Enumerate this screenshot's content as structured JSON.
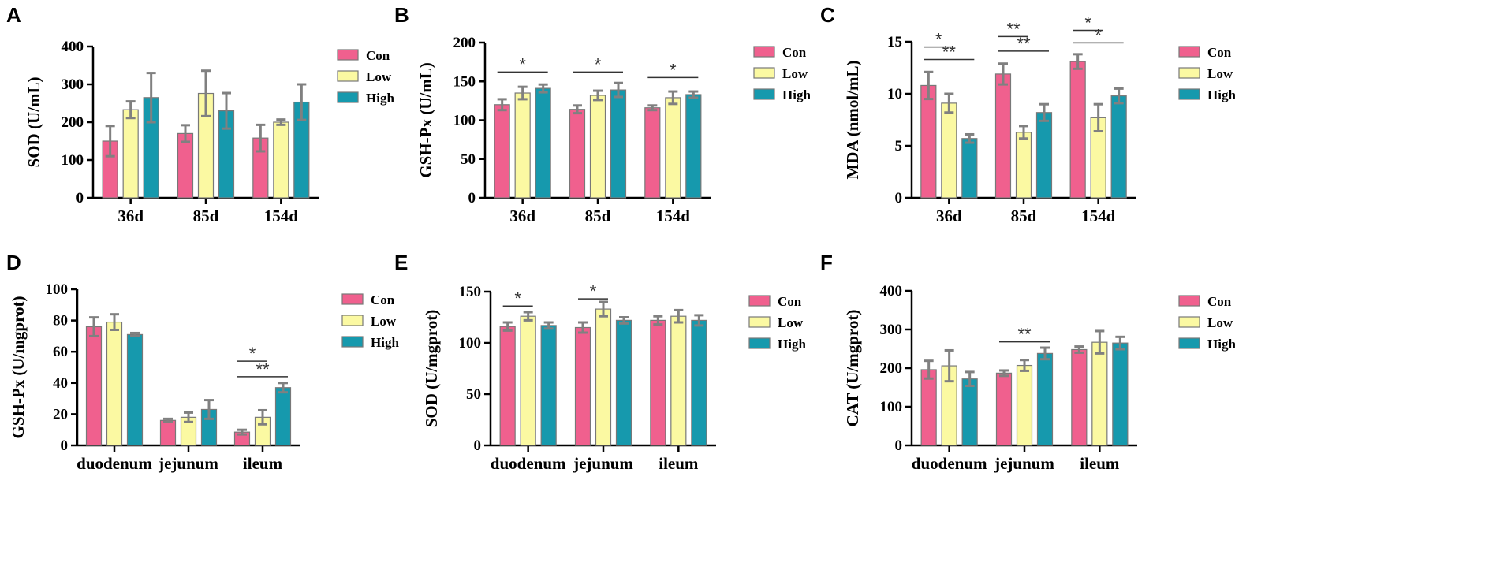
{
  "colors": {
    "Con": "#f0608e",
    "Low": "#fbf9a2",
    "High": "#1699ad",
    "bar_edge": "#787878",
    "err": "#808080"
  },
  "chart_data": [
    {
      "letter": "A",
      "type": "bar",
      "ylabel": "SOD (U/mL)",
      "ylim": [
        0,
        400
      ],
      "yticks": [
        0,
        100,
        200,
        300,
        400
      ],
      "categories": [
        "36d",
        "85d",
        "154d"
      ],
      "series": [
        {
          "name": "Con",
          "values": [
            150,
            170,
            158
          ],
          "errors": [
            40,
            22,
            35
          ]
        },
        {
          "name": "Low",
          "values": [
            233,
            276,
            200
          ],
          "errors": [
            22,
            60,
            7
          ]
        },
        {
          "name": "High",
          "values": [
            265,
            230,
            253
          ],
          "errors": [
            65,
            47,
            47
          ]
        }
      ],
      "significance": []
    },
    {
      "letter": "B",
      "type": "bar",
      "ylabel": "GSH-Px (U/mL)",
      "ylim": [
        0,
        200
      ],
      "yticks": [
        0,
        50,
        100,
        150,
        200
      ],
      "categories": [
        "36d",
        "85d",
        "154d"
      ],
      "series": [
        {
          "name": "Con",
          "values": [
            120,
            114,
            116
          ],
          "errors": [
            7,
            5,
            3
          ]
        },
        {
          "name": "Low",
          "values": [
            135,
            132,
            129
          ],
          "errors": [
            8,
            6,
            8
          ]
        },
        {
          "name": "High",
          "values": [
            141,
            139,
            133
          ],
          "errors": [
            5,
            9,
            4
          ]
        }
      ],
      "significance": [
        {
          "cat": 0,
          "from": 0,
          "to": 2,
          "label": "*",
          "y": 162
        },
        {
          "cat": 1,
          "from": 0,
          "to": 2,
          "label": "*",
          "y": 162
        },
        {
          "cat": 2,
          "from": 0,
          "to": 2,
          "label": "*",
          "y": 155
        }
      ]
    },
    {
      "letter": "C",
      "type": "bar",
      "ylabel": "MDA (nmol/mL)",
      "ylim": [
        0,
        15
      ],
      "yticks": [
        0,
        5,
        10,
        15
      ],
      "categories": [
        "36d",
        "85d",
        "154d"
      ],
      "series": [
        {
          "name": "Con",
          "values": [
            10.8,
            11.9,
            13.1
          ],
          "errors": [
            1.3,
            1.0,
            0.7
          ]
        },
        {
          "name": "Low",
          "values": [
            9.1,
            6.3,
            7.7
          ],
          "errors": [
            0.9,
            0.6,
            1.3
          ]
        },
        {
          "name": "High",
          "values": [
            5.7,
            8.2,
            9.8
          ],
          "errors": [
            0.4,
            0.8,
            0.7
          ]
        }
      ],
      "significance": [
        {
          "cat": 0,
          "from": 0,
          "to": 1,
          "label": "*",
          "y": 14.5
        },
        {
          "cat": 0,
          "from": 0,
          "to": 2,
          "label": "**",
          "y": 13.3
        },
        {
          "cat": 1,
          "from": 0,
          "to": 1,
          "label": "**",
          "y": 15.5
        },
        {
          "cat": 1,
          "from": 0,
          "to": 2,
          "label": "**",
          "y": 14.1
        },
        {
          "cat": 2,
          "from": 0,
          "to": 1,
          "label": "*",
          "y": 16.1
        },
        {
          "cat": 2,
          "from": 0,
          "to": 2,
          "label": "*",
          "y": 14.9
        }
      ]
    },
    {
      "letter": "D",
      "type": "bar",
      "ylabel": "GSH-Px (U/mgprot)",
      "ylim": [
        0,
        100
      ],
      "yticks": [
        0,
        20,
        40,
        60,
        80,
        100
      ],
      "categories": [
        "duodenum",
        "jejunum",
        "ileum"
      ],
      "series": [
        {
          "name": "Con",
          "values": [
            76,
            16,
            8.5
          ],
          "errors": [
            6,
            1,
            1.5
          ]
        },
        {
          "name": "Low",
          "values": [
            79,
            18,
            18
          ],
          "errors": [
            5,
            3,
            4.5
          ]
        },
        {
          "name": "High",
          "values": [
            71,
            23,
            37
          ],
          "errors": [
            1,
            6,
            3
          ]
        }
      ],
      "significance": [
        {
          "cat": 2,
          "from": 0,
          "to": 1,
          "label": "*",
          "y": 54
        },
        {
          "cat": 2,
          "from": 0,
          "to": 2,
          "label": "**",
          "y": 44
        }
      ]
    },
    {
      "letter": "E",
      "type": "bar",
      "ylabel": "SOD (U/mgprot)",
      "ylim": [
        0,
        150
      ],
      "yticks": [
        0,
        50,
        100,
        150
      ],
      "categories": [
        "duodenum",
        "jejunum",
        "ileum"
      ],
      "series": [
        {
          "name": "Con",
          "values": [
            116,
            115,
            122
          ],
          "errors": [
            4,
            5,
            4
          ]
        },
        {
          "name": "Low",
          "values": [
            126,
            133,
            126
          ],
          "errors": [
            4,
            7,
            6
          ]
        },
        {
          "name": "High",
          "values": [
            117,
            122,
            122
          ],
          "errors": [
            3,
            3,
            5
          ]
        }
      ],
      "significance": [
        {
          "cat": 0,
          "from": 0,
          "to": 1,
          "label": "*",
          "y": 136
        },
        {
          "cat": 1,
          "from": 0,
          "to": 1,
          "label": "*",
          "y": 143
        }
      ]
    },
    {
      "letter": "F",
      "type": "bar",
      "ylabel": "CAT (U/mgprot)",
      "ylim": [
        0,
        400
      ],
      "yticks": [
        0,
        100,
        200,
        300,
        400
      ],
      "categories": [
        "duodenum",
        "jejunum",
        "ileum"
      ],
      "series": [
        {
          "name": "Con",
          "values": [
            196,
            187,
            248
          ],
          "errors": [
            23,
            7,
            8
          ]
        },
        {
          "name": "Low",
          "values": [
            206,
            207,
            267
          ],
          "errors": [
            40,
            14,
            29
          ]
        },
        {
          "name": "High",
          "values": [
            172,
            238,
            265
          ],
          "errors": [
            18,
            15,
            16
          ]
        }
      ],
      "significance": [
        {
          "cat": 1,
          "from": 0,
          "to": 2,
          "label": "**",
          "y": 268
        }
      ]
    }
  ]
}
